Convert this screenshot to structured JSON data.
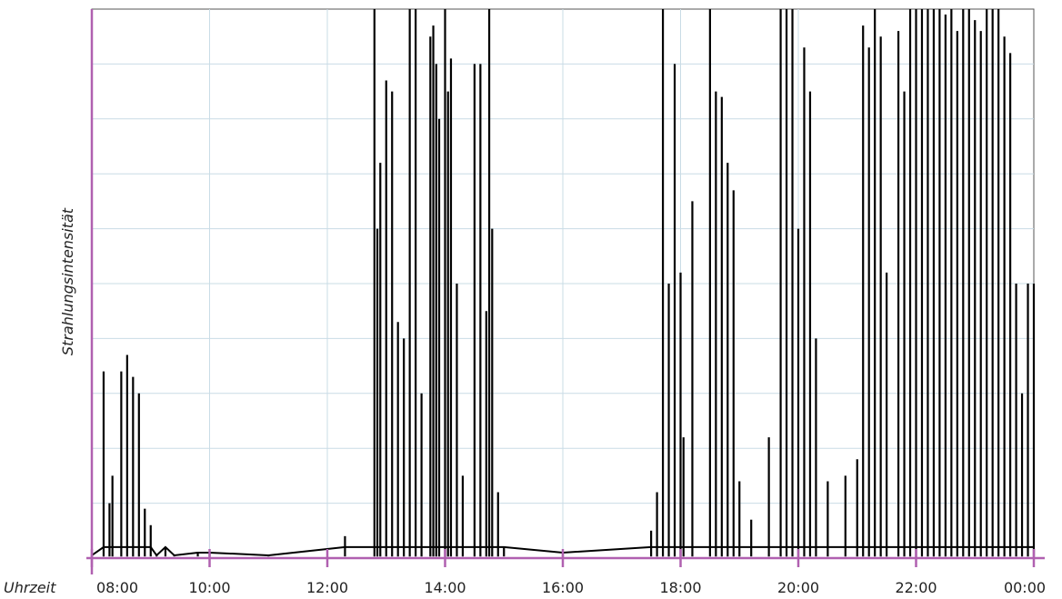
{
  "chart_data": {
    "type": "line",
    "title": "",
    "xlabel": "Uhrzeit",
    "ylabel": "Strahlungsintensität",
    "x_ticks": [
      "08:00",
      "10:00",
      "12:00",
      "14:00",
      "16:00",
      "18:00",
      "20:00",
      "22:00",
      "00:00"
    ],
    "x_range_hours": [
      8,
      24
    ],
    "ylim": [
      0,
      100
    ],
    "grid": true,
    "colors": {
      "axis": "#b060b0",
      "grid": "#c9dce6",
      "line": "#000000",
      "grid_border": "#555555"
    },
    "series": [
      {
        "values_note": "approximate peak intensities per time (hours since 00:00, relative intensity 0-100)",
        "x": [
          8.0,
          8.2,
          8.3,
          8.35,
          8.5,
          8.6,
          8.7,
          8.8,
          8.9,
          9.0,
          9.1,
          9.25,
          9.4,
          9.8,
          10.0,
          11.0,
          12.3,
          12.8,
          12.85,
          12.9,
          13.0,
          13.1,
          13.2,
          13.3,
          13.4,
          13.5,
          13.6,
          13.75,
          13.8,
          13.85,
          13.9,
          14.0,
          14.05,
          14.1,
          14.2,
          14.3,
          14.5,
          14.6,
          14.7,
          14.75,
          14.8,
          14.9,
          15.0,
          16.0,
          17.5,
          17.6,
          17.7,
          17.8,
          17.9,
          18.0,
          18.05,
          18.2,
          18.5,
          18.6,
          18.7,
          18.8,
          18.9,
          19.0,
          19.2,
          19.5,
          19.7,
          19.8,
          19.9,
          20.0,
          20.1,
          20.2,
          20.3,
          20.5,
          20.8,
          21.0,
          21.1,
          21.2,
          21.3,
          21.4,
          21.5,
          21.7,
          21.8,
          21.9,
          22.0,
          22.1,
          22.2,
          22.3,
          22.4,
          22.5,
          22.6,
          22.7,
          22.8,
          22.9,
          23.0,
          23.1,
          23.2,
          23.3,
          23.4,
          23.5,
          23.6,
          23.7,
          23.8,
          23.9,
          24.0
        ],
        "y": [
          0.5,
          34,
          10,
          15,
          34,
          37,
          33,
          30,
          9,
          6,
          0.5,
          2,
          0.5,
          1,
          1,
          0.5,
          4,
          100,
          60,
          72,
          87,
          85,
          43,
          40,
          100,
          100,
          30,
          95,
          97,
          90,
          80,
          100,
          85,
          91,
          50,
          15,
          90,
          90,
          45,
          100,
          60,
          12,
          2,
          1,
          5,
          12,
          100,
          50,
          90,
          52,
          22,
          65,
          100,
          85,
          84,
          72,
          67,
          14,
          7,
          22,
          100,
          100,
          100,
          60,
          93,
          85,
          40,
          14,
          15,
          18,
          97,
          93,
          100,
          95,
          52,
          96,
          85,
          100,
          100,
          100,
          100,
          100,
          100,
          99,
          100,
          96,
          100,
          100,
          98,
          96,
          100,
          100,
          100,
          95,
          92,
          50,
          30,
          50,
          50
        ]
      }
    ]
  }
}
